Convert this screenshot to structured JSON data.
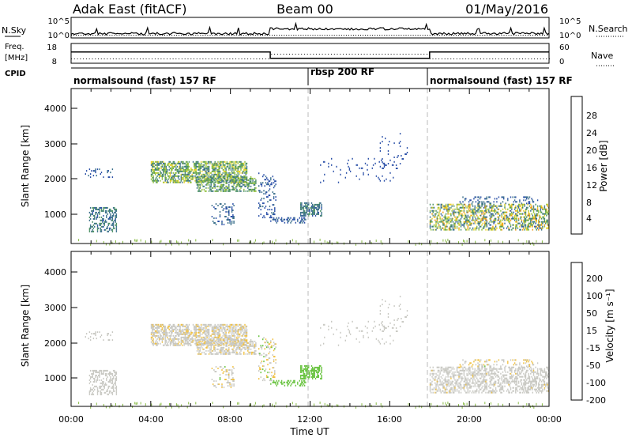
{
  "header": {
    "radar": "Adak East (fitACF)",
    "beam": "Beam 00",
    "date": "01/May/2016"
  },
  "colors": {
    "power_scale": [
      "#0a1ecf",
      "#2a4fa8",
      "#3a6f8a",
      "#4a8f63",
      "#8fbf3a",
      "#e8d020",
      "#f09a10",
      "#e85a10",
      "#d21818"
    ],
    "velocity_scale": [
      "#1426cc",
      "#2e58a6",
      "#3a7a5a",
      "#66c23c",
      "#c8c8c2",
      "#f0c040",
      "#f08c14",
      "#e05a14",
      "#d41414"
    ],
    "ground_scatter": "#88bb44",
    "line": "#000000",
    "dash": "#aaaaaa"
  },
  "nsky": {
    "label": "N.Sky",
    "tick_labels": [
      "10^5",
      "10^0"
    ],
    "right_label": "N.Search",
    "right_tick_labels": [
      "10^5",
      "10^0"
    ]
  },
  "freq": {
    "label_top": "Freq.",
    "label_unit": "[MHz]",
    "left_ticks": [
      "18",
      "8"
    ],
    "right_ticks": [
      "60",
      "0"
    ],
    "right_label": "Nave",
    "freq_segments": [
      {
        "start_hr": 0,
        "end_hr": 10,
        "mhz": 13.8
      },
      {
        "start_hr": 10,
        "end_hr": 18,
        "mhz": 10.0
      },
      {
        "start_hr": 18,
        "end_hr": 24,
        "mhz": 13.8
      }
    ]
  },
  "cpid": {
    "label": "CPID",
    "segments": [
      {
        "label": "normalsound (fast) 157 RF",
        "start_hr": 0
      },
      {
        "label": "rbsp 200 RF",
        "start_hr": 12
      },
      {
        "label": "normalsound (fast) 157 RF",
        "start_hr": 18
      }
    ],
    "dividers_hr": [
      12,
      18
    ]
  },
  "power_panel": {
    "ylabel": "Slant Range [km]",
    "yticks": [
      "1000",
      "2000",
      "3000",
      "4000"
    ],
    "colorbar_label": "Power [dB]",
    "colorbar_ticks": [
      "4",
      "8",
      "12",
      "16",
      "20",
      "24",
      "28"
    ]
  },
  "velocity_panel": {
    "ylabel": "Slant Range [km]",
    "yticks": [
      "1000",
      "2000",
      "3000",
      "4000"
    ],
    "colorbar_label": "Velocity [m s⁻¹]",
    "colorbar_ticks": [
      "200",
      "100",
      "50",
      "15",
      "-15",
      "-50",
      "-100",
      "-200"
    ]
  },
  "xaxis": {
    "label": "Time UT",
    "ticks": [
      "00:00",
      "04:00",
      "08:00",
      "12:00",
      "16:00",
      "20:00",
      "00:00"
    ]
  },
  "chart_data": {
    "type": "heatmap",
    "x_range_hr": [
      0,
      24
    ],
    "y_range_km": [
      180,
      4600
    ],
    "power_range_db": [
      0,
      30
    ],
    "velocity_range_ms": [
      -250,
      250
    ],
    "regions": [
      {
        "t0": 0.9,
        "t1": 2.3,
        "r0": 500,
        "r1": 1200,
        "dens": 0.45,
        "p": [
          6,
          12
        ],
        "v": [
          -20,
          10
        ]
      },
      {
        "t0": 0.6,
        "t1": 2.2,
        "r0": 2050,
        "r1": 2300,
        "dens": 0.1,
        "p": [
          4,
          8
        ],
        "v": [
          -20,
          10
        ]
      },
      {
        "t0": 4.0,
        "t1": 8.8,
        "r0": 1900,
        "r1": 2500,
        "dens": 0.6,
        "p": [
          8,
          18
        ],
        "v": [
          -40,
          20
        ]
      },
      {
        "t0": 6.3,
        "t1": 9.3,
        "r0": 1650,
        "r1": 2100,
        "dens": 0.5,
        "p": [
          8,
          16
        ],
        "v": [
          -40,
          20
        ]
      },
      {
        "t0": 7.0,
        "t1": 8.2,
        "r0": 700,
        "r1": 1300,
        "dens": 0.2,
        "p": [
          4,
          10
        ],
        "v": [
          -60,
          30
        ]
      },
      {
        "t0": 9.4,
        "t1": 10.3,
        "r0": 900,
        "r1": 2200,
        "dens": 0.2,
        "p": [
          4,
          8
        ],
        "v": [
          -80,
          60
        ]
      },
      {
        "t0": 10.0,
        "t1": 11.8,
        "r0": 750,
        "r1": 900,
        "dens": 0.35,
        "p": [
          4,
          8
        ],
        "v": [
          30,
          70
        ]
      },
      {
        "t0": 11.5,
        "t1": 12.6,
        "r0": 950,
        "r1": 1350,
        "dens": 0.55,
        "p": [
          6,
          12
        ],
        "v": [
          30,
          80
        ]
      },
      {
        "t0": 12.5,
        "t1": 16.5,
        "r0": 1900,
        "r1": 2600,
        "dens": 0.05,
        "p": [
          4,
          6
        ],
        "v": [
          -20,
          10
        ]
      },
      {
        "t0": 15.5,
        "t1": 17.0,
        "r0": 2300,
        "r1": 3400,
        "dens": 0.05,
        "p": [
          4,
          6
        ],
        "v": [
          -20,
          10
        ]
      },
      {
        "t0": 18.0,
        "t1": 24.0,
        "r0": 550,
        "r1": 1300,
        "dens": 0.45,
        "p": [
          6,
          22
        ],
        "v": [
          -30,
          20
        ]
      },
      {
        "t0": 19.5,
        "t1": 23.5,
        "r0": 1300,
        "r1": 1500,
        "dens": 0.2,
        "p": [
          4,
          10
        ],
        "v": [
          -60,
          30
        ]
      }
    ],
    "ground_scatter": {
      "r0": 180,
      "r1": 320,
      "dens": 0.25
    }
  }
}
